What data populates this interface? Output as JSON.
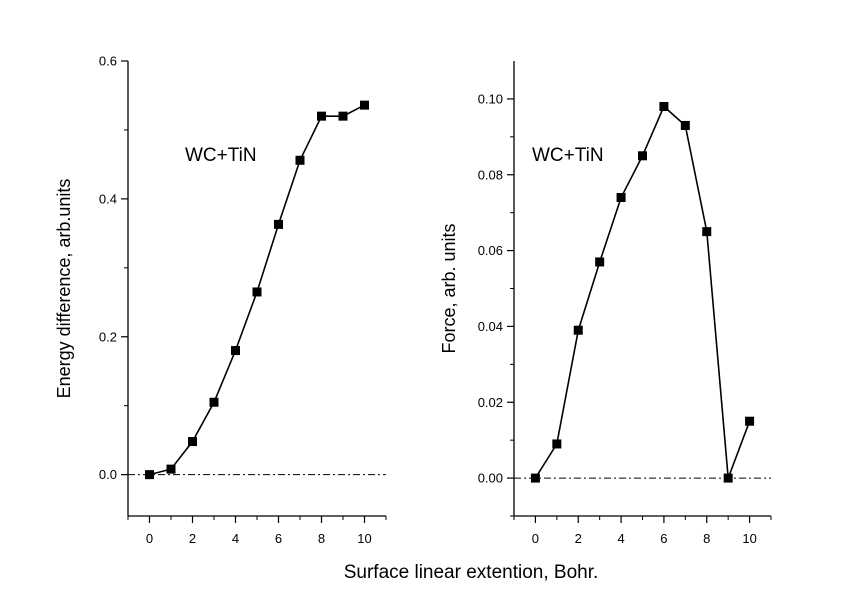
{
  "figure": {
    "xlabel": "Surface linear extention, Bohr."
  },
  "chart_data": [
    {
      "type": "line",
      "title": "",
      "annotation": "WC+TiN",
      "xlabel": "Surface linear extention, Bohr.",
      "ylabel": "Energy difference, arb.units",
      "xlim": [
        -1,
        11
      ],
      "ylim": [
        -0.06,
        0.6
      ],
      "xticks": [
        0,
        2,
        4,
        6,
        8,
        10
      ],
      "xtick_labels": [
        "0",
        "2",
        "4",
        "6",
        "8",
        "10"
      ],
      "yticks": [
        0.0,
        0.2,
        0.4,
        0.6
      ],
      "ytick_labels": [
        "0.0",
        "0.2",
        "0.4",
        "0.6"
      ],
      "baseline": 0.0,
      "grid": false,
      "series": [
        {
          "name": "WC+TiN",
          "marker": "square",
          "x": [
            0,
            1,
            2,
            3,
            4,
            5,
            6,
            7,
            8,
            9,
            10
          ],
          "values": [
            0.0,
            0.008,
            0.048,
            0.105,
            0.18,
            0.265,
            0.363,
            0.456,
            0.52,
            0.52,
            0.536
          ]
        }
      ]
    },
    {
      "type": "line",
      "title": "",
      "annotation": "WC+TiN",
      "xlabel": "Surface linear extention, Bohr.",
      "ylabel": "Force, arb. units",
      "xlim": [
        -1,
        11
      ],
      "ylim": [
        -0.01,
        0.11
      ],
      "xticks": [
        0,
        2,
        4,
        6,
        8,
        10
      ],
      "xtick_labels": [
        "0",
        "2",
        "4",
        "6",
        "8",
        "10"
      ],
      "yticks": [
        0.0,
        0.02,
        0.04,
        0.06,
        0.08,
        0.1
      ],
      "ytick_labels": [
        "0.00",
        "0.02",
        "0.04",
        "0.06",
        "0.08",
        "0.10"
      ],
      "baseline": 0.0,
      "grid": false,
      "series": [
        {
          "name": "WC+TiN",
          "marker": "square",
          "x": [
            0,
            1,
            2,
            3,
            4,
            5,
            6,
            7,
            8,
            9,
            10
          ],
          "values": [
            0.0,
            0.009,
            0.039,
            0.057,
            0.074,
            0.085,
            0.098,
            0.093,
            0.065,
            0.0,
            0.015
          ]
        }
      ]
    }
  ]
}
